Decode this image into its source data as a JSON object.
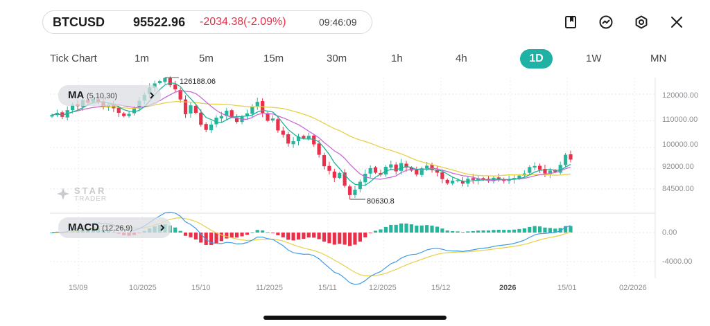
{
  "header": {
    "symbol": "BTCUSD",
    "price": "95522.96",
    "change": "-2034.38(-2.09%)",
    "time": "09:46:09"
  },
  "icons": [
    "bookmark-icon",
    "trend-icon",
    "settings-icon",
    "close-icon"
  ],
  "timeframes": [
    "Tick Chart",
    "1m",
    "5m",
    "15m",
    "30m",
    "1h",
    "4h",
    "1D",
    "1W",
    "MN"
  ],
  "active_timeframe": "1D",
  "colors": {
    "up": "#26b59c",
    "down": "#e8304a",
    "accent": "#1fb1a3",
    "ma5": "#19b394",
    "ma10": "#c66bd6",
    "ma30": "#e6d146",
    "macd": "#3d9be9",
    "signal": "#e6d146"
  },
  "indicators": {
    "ma": {
      "label": "MA",
      "params": "(5,10,30)"
    },
    "macd": {
      "label": "MACD",
      "params": "(12,26,9)"
    }
  },
  "watermark": {
    "brand": "STAR",
    "sub": "TRADER"
  },
  "chart_data": {
    "type": "candlestick",
    "main_axis": {
      "tick_labels": [
        "120000.00",
        "110000.00",
        "100000.00",
        "92000.00",
        "84500.00"
      ],
      "annotations": {
        "high": "126188.06",
        "low": "80630.8"
      }
    },
    "macd_axis": {
      "tick_labels": [
        "0.00",
        "-4000.00"
      ]
    },
    "x_labels": [
      "15/09",
      "10/2025",
      "15/10",
      "11/2025",
      "15/11",
      "12/2025",
      "15/12",
      "2026",
      "15/01",
      "02/2026"
    ],
    "x_labels_bold": [
      "2026"
    ],
    "closes": [
      112200,
      113000,
      111500,
      114000,
      116000,
      115500,
      117800,
      116800,
      118200,
      117200,
      115300,
      116000,
      114700,
      113000,
      111800,
      112600,
      114800,
      117500,
      119800,
      122500,
      124000,
      124900,
      126050,
      123400,
      121800,
      118000,
      112500,
      115800,
      113000,
      108500,
      106600,
      108600,
      111200,
      111800,
      113800,
      111500,
      109600,
      111500,
      112800,
      115400,
      117100,
      113000,
      110000,
      110900,
      106400,
      104800,
      101500,
      102400,
      104100,
      103500,
      104400,
      101200,
      97300,
      93000,
      91300,
      88700,
      90500,
      85700,
      82200,
      84200,
      87200,
      90200,
      92300,
      90600,
      89800,
      92800,
      93700,
      91100,
      94200,
      92500,
      91400,
      89900,
      92200,
      93200,
      91800,
      90600,
      88200,
      86600,
      87600,
      87800,
      86500,
      88300,
      87900,
      88500,
      88000,
      87500,
      88700,
      88200,
      87800,
      87900,
      88600,
      89500,
      90300,
      92700,
      93100,
      91700,
      90300,
      91400,
      90900,
      93500,
      97300,
      95500
    ],
    "overlays": [
      "MA5",
      "MA10",
      "MA30"
    ],
    "macd_series": [
      "MACD",
      "Signal",
      "Histogram"
    ]
  }
}
